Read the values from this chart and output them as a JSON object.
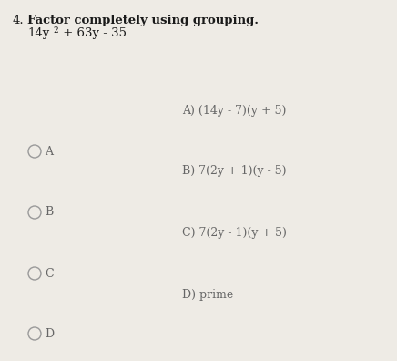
{
  "bg_color": "#eeebe5",
  "question_number": "4.",
  "instruction": "Factor completely using grouping.",
  "expression_parts": [
    "14y",
    "2",
    " + 63y - 35"
  ],
  "choices": [
    "A) (14y - 7)(y + 5)",
    "B) 7(2y + 1)(y - 5)",
    "C) 7(2y - 1)(y + 5)",
    "D) prime"
  ],
  "radio_labels": [
    "A",
    "B",
    "C",
    "D"
  ],
  "title_color": "#1a1a1a",
  "text_color": "#666666",
  "radio_color": "#999999",
  "instruction_fontsize": 9.5,
  "expression_fontsize": 9.5,
  "choice_fontsize": 9.0,
  "radio_fontsize": 9.0,
  "qnum_fontsize": 9.5,
  "fig_width": 4.36,
  "fig_height": 3.96,
  "dpi": 100
}
